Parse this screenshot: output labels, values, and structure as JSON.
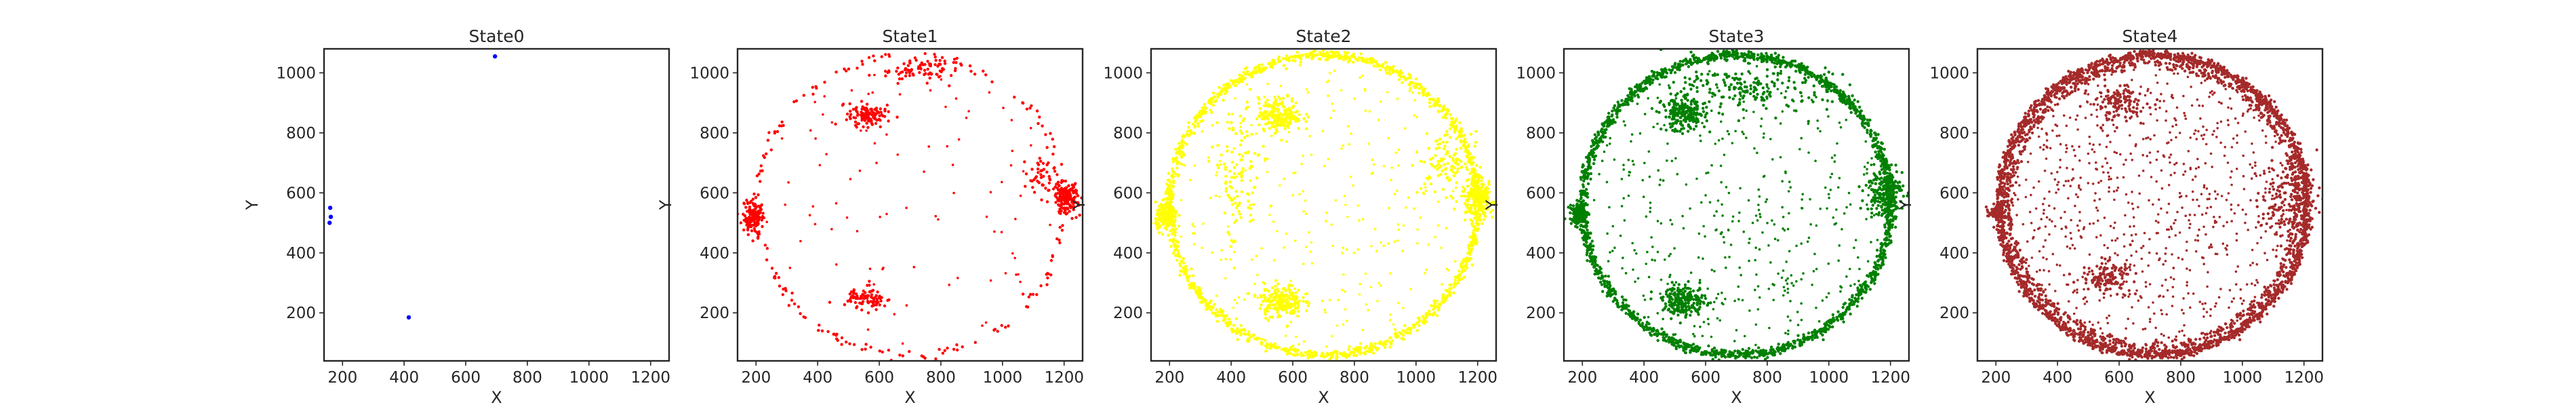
{
  "chart_data": [
    {
      "type": "scatter",
      "title": "State0",
      "xlabel": "X",
      "ylabel": "Y",
      "xlim": [
        140,
        1260
      ],
      "ylim": [
        40,
        1080
      ],
      "xticks": [
        200,
        400,
        600,
        800,
        1000,
        1200
      ],
      "yticks": [
        200,
        400,
        600,
        800,
        1000
      ],
      "color": "#0000ff",
      "grid": false,
      "points": [
        [
          695,
          1055
        ],
        [
          415,
          185
        ],
        [
          160,
          550
        ],
        [
          162,
          520
        ],
        [
          158,
          500
        ]
      ]
    },
    {
      "type": "scatter",
      "title": "State1",
      "xlabel": "X",
      "ylabel": "Y",
      "xlim": [
        140,
        1260
      ],
      "ylim": [
        40,
        1080
      ],
      "xticks": [
        200,
        400,
        600,
        800,
        1000,
        1200
      ],
      "yticks": [
        200,
        400,
        600,
        800,
        1000
      ],
      "color": "#ff0000",
      "grid": false,
      "ring": {
        "cx": 700,
        "cy": 560,
        "r": 500,
        "coverage": 0.55,
        "count": 320
      },
      "clusters": [
        {
          "cx": 560,
          "cy": 860,
          "rx": 60,
          "ry": 40,
          "count": 120
        },
        {
          "cx": 720,
          "cy": 1010,
          "rx": 120,
          "ry": 40,
          "count": 80
        },
        {
          "cx": 560,
          "cy": 250,
          "rx": 60,
          "ry": 35,
          "count": 90
        },
        {
          "cx": 190,
          "cy": 520,
          "rx": 35,
          "ry": 55,
          "count": 160
        },
        {
          "cx": 1210,
          "cy": 580,
          "rx": 40,
          "ry": 50,
          "count": 150
        },
        {
          "cx": 1120,
          "cy": 660,
          "rx": 60,
          "ry": 80,
          "count": 50
        }
      ],
      "scatter": 90
    },
    {
      "type": "scatter",
      "title": "State2",
      "xlabel": "X",
      "ylabel": "Y",
      "xlim": [
        140,
        1260
      ],
      "ylim": [
        40,
        1080
      ],
      "xticks": [
        200,
        400,
        600,
        800,
        1000,
        1200
      ],
      "yticks": [
        200,
        400,
        600,
        800,
        1000
      ],
      "color": "#ffff00",
      "grid": false,
      "ring": {
        "cx": 700,
        "cy": 560,
        "r": 500,
        "coverage": 0.95,
        "count": 1400
      },
      "clusters": [
        {
          "cx": 560,
          "cy": 860,
          "rx": 70,
          "ry": 55,
          "count": 200
        },
        {
          "cx": 560,
          "cy": 240,
          "rx": 70,
          "ry": 55,
          "count": 200
        },
        {
          "cx": 190,
          "cy": 520,
          "rx": 35,
          "ry": 45,
          "count": 150
        },
        {
          "cx": 1200,
          "cy": 580,
          "rx": 55,
          "ry": 60,
          "count": 200
        },
        {
          "cx": 1100,
          "cy": 700,
          "rx": 80,
          "ry": 100,
          "count": 100
        },
        {
          "cx": 420,
          "cy": 650,
          "rx": 80,
          "ry": 250,
          "count": 120
        }
      ],
      "scatter": 260
    },
    {
      "type": "scatter",
      "title": "State3",
      "xlabel": "X",
      "ylabel": "Y",
      "xlim": [
        140,
        1260
      ],
      "ylim": [
        40,
        1080
      ],
      "xticks": [
        200,
        400,
        600,
        800,
        1000,
        1200
      ],
      "yticks": [
        200,
        400,
        600,
        800,
        1000
      ],
      "color": "#008000",
      "grid": false,
      "ring": {
        "cx": 700,
        "cy": 560,
        "r": 500,
        "coverage": 1.0,
        "count": 1800
      },
      "clusters": [
        {
          "cx": 530,
          "cy": 860,
          "rx": 70,
          "ry": 55,
          "count": 220
        },
        {
          "cx": 530,
          "cy": 240,
          "rx": 70,
          "ry": 50,
          "count": 220
        },
        {
          "cx": 190,
          "cy": 530,
          "rx": 30,
          "ry": 35,
          "count": 120
        },
        {
          "cx": 1180,
          "cy": 600,
          "rx": 60,
          "ry": 80,
          "count": 220
        },
        {
          "cx": 750,
          "cy": 950,
          "rx": 250,
          "ry": 80,
          "count": 200
        }
      ],
      "scatter": 420
    },
    {
      "type": "scatter",
      "title": "State4",
      "xlabel": "X",
      "ylabel": "Y",
      "xlim": [
        140,
        1260
      ],
      "ylim": [
        40,
        1080
      ],
      "xticks": [
        200,
        400,
        600,
        800,
        1000,
        1200
      ],
      "yticks": [
        200,
        400,
        600,
        800,
        1000
      ],
      "color": "#a52a2a",
      "grid": false,
      "ring": {
        "cx": 710,
        "cy": 560,
        "r": 500,
        "coverage": 1.0,
        "count": 2200
      },
      "ring2": {
        "cx": 710,
        "cy": 560,
        "r": 470,
        "coverage": 0.9,
        "count": 900
      },
      "clusters": [
        {
          "cx": 560,
          "cy": 320,
          "rx": 80,
          "ry": 50,
          "count": 120
        },
        {
          "cx": 600,
          "cy": 900,
          "rx": 90,
          "ry": 60,
          "count": 120
        },
        {
          "cx": 200,
          "cy": 530,
          "rx": 30,
          "ry": 20,
          "count": 60
        },
        {
          "cx": 1150,
          "cy": 580,
          "rx": 90,
          "ry": 150,
          "count": 160
        }
      ],
      "scatter": 800
    }
  ]
}
